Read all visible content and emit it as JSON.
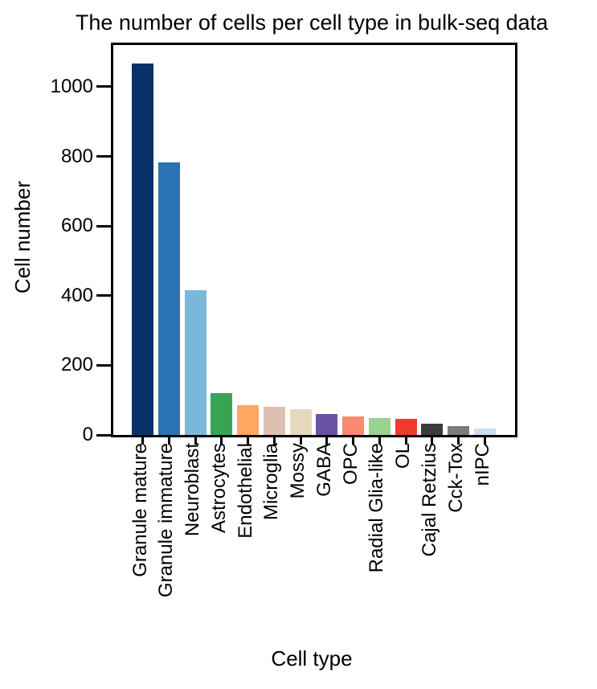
{
  "chart_data": {
    "type": "bar",
    "title": "The number of cells per cell type in bulk-seq data",
    "xlabel": "Cell type",
    "ylabel": "Cell number",
    "categories": [
      "Granule mature",
      "Granule immature",
      "Neuroblast",
      "Astrocytes",
      "Endothelial",
      "Microglia",
      "Mossy",
      "GABA",
      "OPC",
      "Radial Glia-like",
      "OL",
      "Cajal Retzius",
      "Cck-Tox",
      "nIPC"
    ],
    "values": [
      1068,
      783,
      416,
      120,
      85,
      81,
      74,
      61,
      53,
      49,
      47,
      32,
      26,
      18
    ],
    "colors": [
      "#0a3168",
      "#2a72b3",
      "#7cb7db",
      "#3aa356",
      "#fda763",
      "#ddc0b1",
      "#e5d9bd",
      "#6952a3",
      "#fa8a6e",
      "#99d291",
      "#ee3b2c",
      "#3b3b3b",
      "#7b7b7b",
      "#c9def0"
    ],
    "yticks": [
      0,
      200,
      400,
      600,
      800,
      1000
    ],
    "ylim": [
      0,
      1120
    ],
    "grid": false,
    "legend": "none",
    "frame_color": "#000000",
    "background_color": "#ffffff"
  }
}
